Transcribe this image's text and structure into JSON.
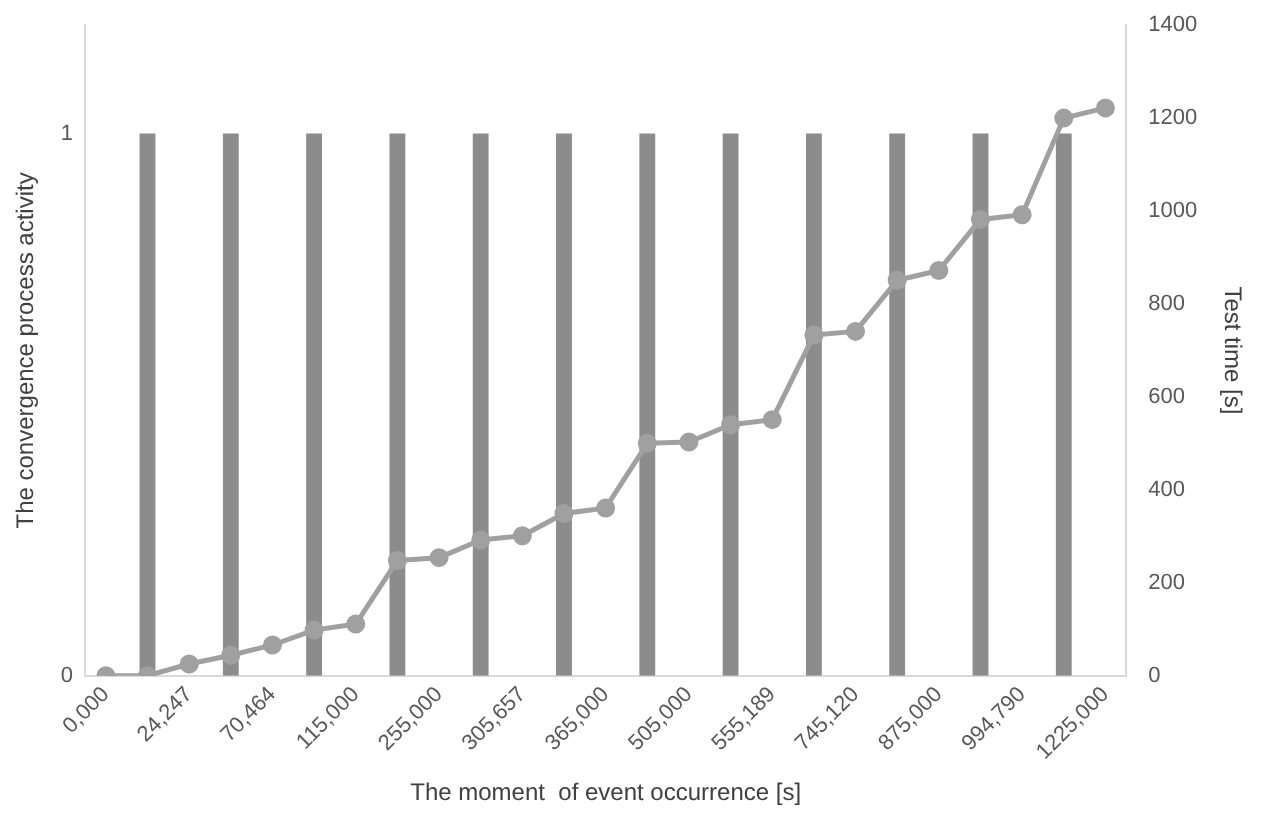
{
  "chart_data": {
    "type": "bar",
    "xlabel": "The moment  of event occurrence [s]",
    "ylabel": "The convergence process activity",
    "y2label": "Test time [s]",
    "categories": [
      "0,000",
      null,
      "24,247",
      null,
      "70,464",
      null,
      "115,000",
      null,
      "255,000",
      null,
      "305,657",
      null,
      "365,000",
      null,
      "505,000",
      null,
      "555,189",
      null,
      "745,120",
      null,
      "875,000",
      null,
      "994,790",
      null,
      "1225,000"
    ],
    "series": [
      {
        "color": "#8c8c8c",
        "values": [
          null,
          1,
          null,
          1,
          null,
          1,
          null,
          1,
          null,
          1,
          null,
          1,
          null,
          1,
          null,
          1,
          null,
          1,
          null,
          1,
          null,
          1,
          null,
          1,
          null
        ]
      },
      {
        "type": "line",
        "axis": "y2",
        "color": "#a0a0a0",
        "values": [
          0,
          0,
          25,
          44,
          66,
          98,
          111,
          248,
          254,
          292,
          301,
          349,
          361,
          500,
          503,
          540,
          551,
          733,
          741,
          851,
          872,
          982,
          992,
          1200,
          1222
        ]
      }
    ],
    "ylim": [
      0,
      1.2
    ],
    "yticks": [
      0,
      1
    ],
    "y2lim": [
      0,
      1400
    ],
    "y2ticks": [
      0,
      200,
      400,
      600,
      800,
      1000,
      1200,
      1400
    ],
    "grid": false,
    "legend": false,
    "marker": "circle",
    "line_style": "solid"
  }
}
